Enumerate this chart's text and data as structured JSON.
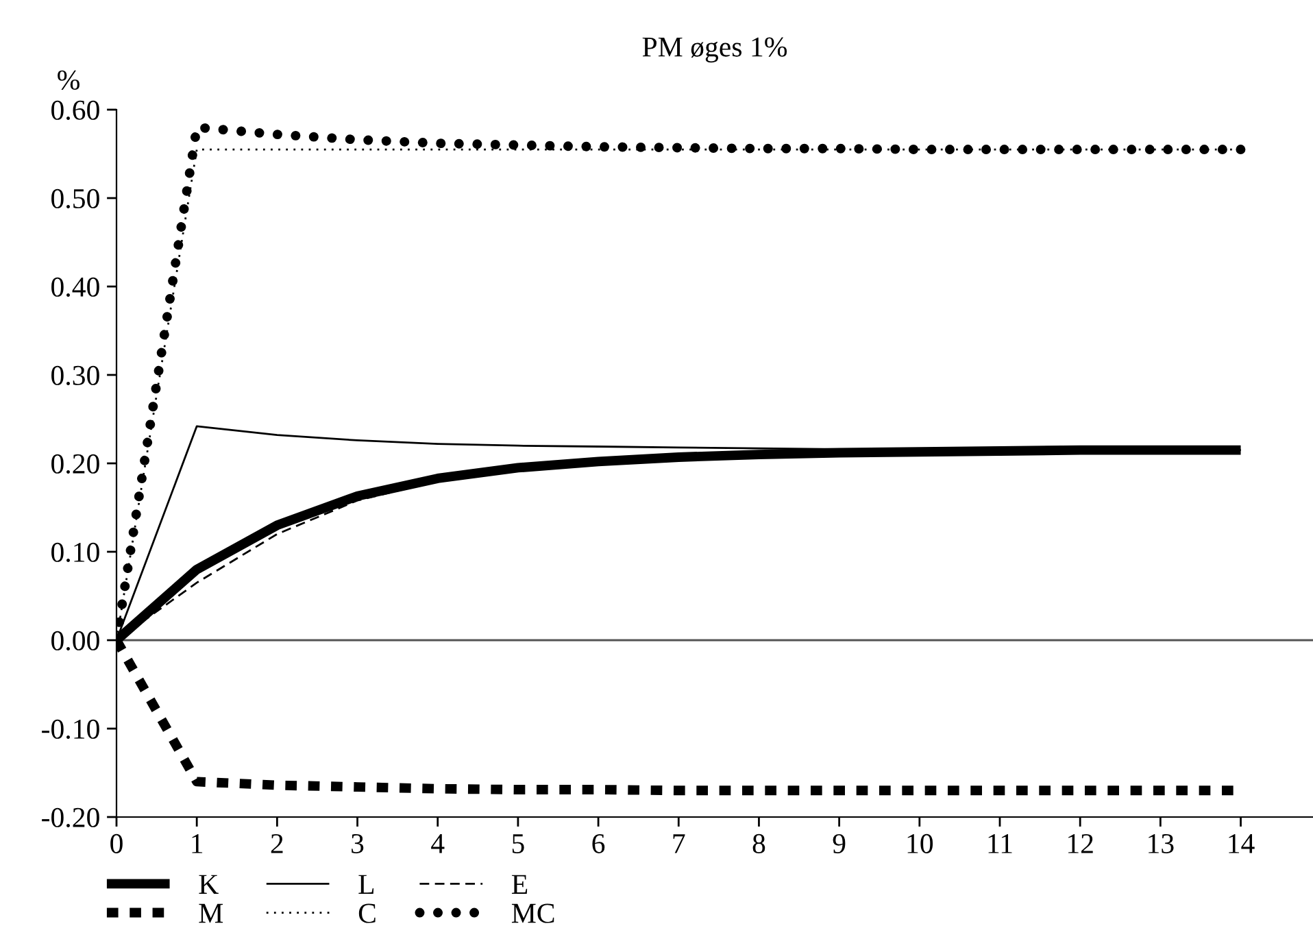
{
  "chart_data": {
    "type": "line",
    "title": "PM øges 1%",
    "ylabel": "%",
    "x": [
      0,
      1,
      2,
      3,
      4,
      5,
      6,
      7,
      8,
      9,
      10,
      11,
      12,
      13,
      14
    ],
    "series": [
      {
        "name": "K",
        "color": "#000000",
        "line_style": "solid",
        "values": [
          0,
          0.08,
          0.13,
          0.163,
          0.183,
          0.195,
          0.202,
          0.207,
          0.21,
          0.212,
          0.213,
          0.214,
          0.215,
          0.215,
          0.215
        ]
      },
      {
        "name": "L",
        "color": "#000000",
        "line_style": "solid",
        "values": [
          0,
          0.242,
          0.232,
          0.226,
          0.222,
          0.22,
          0.219,
          0.218,
          0.217,
          0.216,
          0.216,
          0.215,
          0.215,
          0.215,
          0.215
        ]
      },
      {
        "name": "E",
        "color": "#000000",
        "line_style": "dashed",
        "values": [
          0,
          0.065,
          0.12,
          0.158,
          0.18,
          0.193,
          0.201,
          0.206,
          0.209,
          0.211,
          0.213,
          0.214,
          0.214,
          0.215,
          0.215
        ]
      },
      {
        "name": "M",
        "color": "#000000",
        "line_style": "dashed",
        "values": [
          0,
          -0.16,
          -0.164,
          -0.166,
          -0.168,
          -0.169,
          -0.169,
          -0.17,
          -0.17,
          -0.17,
          -0.17,
          -0.17,
          -0.17,
          -0.17,
          -0.17
        ]
      },
      {
        "name": "C",
        "color": "#000000",
        "line_style": "dotted",
        "values": [
          0,
          0.555,
          0.555,
          0.555,
          0.555,
          0.555,
          0.555,
          0.555,
          0.555,
          0.555,
          0.555,
          0.555,
          0.555,
          0.555,
          0.555
        ]
      },
      {
        "name": "MC",
        "color": "#000000",
        "line_style": "dotted",
        "values": [
          0,
          0.58,
          0.572,
          0.566,
          0.562,
          0.56,
          0.558,
          0.557,
          0.556,
          0.556,
          0.555,
          0.555,
          0.555,
          0.555,
          0.555
        ]
      }
    ],
    "xlim": [
      0,
      14.9
    ],
    "xticks": [
      0,
      1,
      2,
      3,
      4,
      5,
      6,
      7,
      8,
      9,
      10,
      11,
      12,
      13,
      14
    ],
    "ylim": [
      -0.2,
      0.6
    ],
    "yticks": [
      {
        "value": -0.2,
        "label": "-0.20"
      },
      {
        "value": -0.1,
        "label": "-0.10"
      },
      {
        "value": 0,
        "label": "0.00"
      },
      {
        "value": 0.1,
        "label": "0.10"
      },
      {
        "value": 0.2,
        "label": "0.20"
      },
      {
        "value": 0.3,
        "label": "0.30"
      },
      {
        "value": 0.4,
        "label": "0.40"
      },
      {
        "value": 0.5,
        "label": "0.50"
      },
      {
        "value": 0.6,
        "label": "0.60"
      }
    ],
    "ref_lines": [
      {
        "axis": "y",
        "value": 0,
        "color": "#555555"
      }
    ],
    "grid": false,
    "legend": "bottom left",
    "marker": "none"
  }
}
